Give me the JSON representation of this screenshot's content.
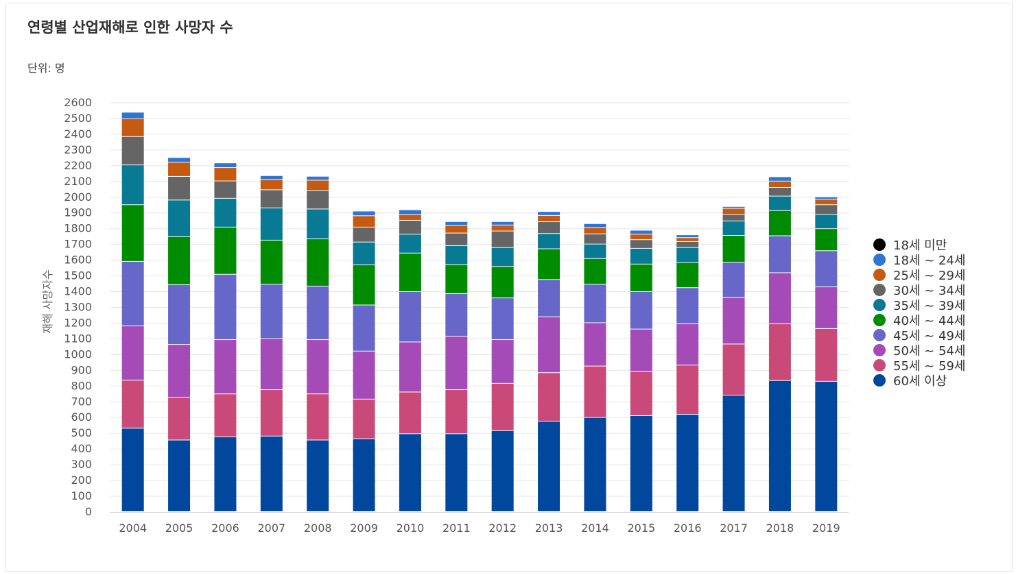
{
  "title": "연령별 산업재해로 인한 사망자 수",
  "unit_label": "단위: 명",
  "chart_data": {
    "type": "bar",
    "stacked": true,
    "title": "연령별 산업재해로 인한 사망자 수",
    "xlabel": "",
    "ylabel": "재해 사망자수",
    "ylim": [
      0,
      2600
    ],
    "yticks": [
      0,
      100,
      200,
      300,
      400,
      500,
      600,
      700,
      800,
      900,
      1000,
      1100,
      1200,
      1300,
      1400,
      1500,
      1600,
      1700,
      1800,
      1900,
      2000,
      2100,
      2200,
      2300,
      2400,
      2500,
      2600
    ],
    "grid": true,
    "legend_position": "right",
    "categories": [
      "2004",
      "2005",
      "2006",
      "2007",
      "2008",
      "2009",
      "2010",
      "2011",
      "2012",
      "2013",
      "2014",
      "2015",
      "2016",
      "2017",
      "2018",
      "2019"
    ],
    "series": [
      {
        "name": "60세 이상",
        "color": "#00479d",
        "values": [
          530,
          455,
          475,
          480,
          455,
          463,
          495,
          495,
          515,
          575,
          598,
          610,
          618,
          740,
          833,
          828
        ]
      },
      {
        "name": "55세 ~ 59세",
        "color": "#c94a79",
        "values": [
          305,
          272,
          273,
          295,
          293,
          252,
          265,
          280,
          300,
          308,
          327,
          280,
          313,
          325,
          360,
          335
        ]
      },
      {
        "name": "50세 ~ 54세",
        "color": "#a54bb8",
        "values": [
          345,
          335,
          345,
          325,
          345,
          305,
          318,
          340,
          278,
          355,
          275,
          270,
          262,
          295,
          325,
          265
        ]
      },
      {
        "name": "45세 ~ 49세",
        "color": "#6667c9",
        "values": [
          410,
          380,
          415,
          345,
          340,
          293,
          320,
          270,
          265,
          237,
          245,
          238,
          230,
          225,
          235,
          230
        ]
      },
      {
        "name": "40세 ~ 44세",
        "color": "#008c00",
        "values": [
          360,
          305,
          300,
          280,
          300,
          255,
          245,
          185,
          200,
          195,
          163,
          175,
          160,
          170,
          160,
          140
        ]
      },
      {
        "name": "35세 ~ 39세",
        "color": "#087a94",
        "values": [
          253,
          233,
          183,
          205,
          190,
          145,
          120,
          120,
          120,
          97,
          92,
          100,
          95,
          92,
          92,
          92
        ]
      },
      {
        "name": "30세 ~ 34세",
        "color": "#656565",
        "values": [
          180,
          150,
          110,
          115,
          118,
          95,
          88,
          80,
          105,
          75,
          65,
          55,
          38,
          42,
          55,
          60
        ]
      },
      {
        "name": "25세 ~ 29세",
        "color": "#c55a11",
        "values": [
          115,
          90,
          85,
          65,
          65,
          72,
          37,
          48,
          38,
          40,
          40,
          35,
          25,
          38,
          40,
          35
        ]
      },
      {
        "name": "18세 ~ 24세",
        "color": "#2e75d6",
        "values": [
          40,
          30,
          30,
          25,
          25,
          30,
          30,
          25,
          22,
          25,
          25,
          25,
          18,
          12,
          28,
          15
        ]
      },
      {
        "name": "18세 미만",
        "color": "#000000",
        "values": [
          0,
          0,
          0,
          0,
          0,
          0,
          0,
          0,
          0,
          0,
          0,
          0,
          0,
          0,
          0,
          0
        ]
      }
    ],
    "legend_order": [
      "18세 미만",
      "18세 ~ 24세",
      "25세 ~ 29세",
      "30세 ~ 34세",
      "35세 ~ 39세",
      "40세 ~ 44세",
      "45세 ~ 49세",
      "50세 ~ 54세",
      "55세 ~ 59세",
      "60세 이상"
    ]
  }
}
